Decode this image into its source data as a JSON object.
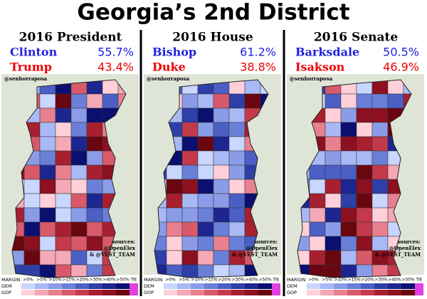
{
  "header": {
    "title": "Georgia’s 2nd District"
  },
  "panels": [
    {
      "heading": "2016 President",
      "candidates": [
        {
          "name": "Clinton",
          "pct": "55.7%",
          "party": "dem"
        },
        {
          "name": "Trump",
          "pct": "43.4%",
          "party": "gop"
        }
      ],
      "credit": "@senhorraposa",
      "sources": [
        "sources:",
        "@OpenElex",
        "& @VEST_TEAM"
      ]
    },
    {
      "heading": "2016 House",
      "candidates": [
        {
          "name": "Bishop",
          "pct": "61.2%",
          "party": "dem"
        },
        {
          "name": "Duke",
          "pct": "38.8%",
          "party": "gop"
        }
      ],
      "credit": "@senhorraposa",
      "sources": [
        "sources:",
        "@OpenElex",
        "& @VEST_TEAM"
      ]
    },
    {
      "heading": "2016 Senate",
      "candidates": [
        {
          "name": "Barksdale",
          "pct": "50.5%",
          "party": "dem"
        },
        {
          "name": "Isakson",
          "pct": "46.9%",
          "party": "gop"
        }
      ],
      "credit": "@senhorraposa",
      "sources": [
        "sources:",
        "@OpenElex",
        "& @VEST_TEAM"
      ]
    }
  ],
  "legend": {
    "margin": "MARGIN",
    "dem": "DEM",
    "gop": "GOP",
    "tie": "TIE",
    "levels": [
      ">0%",
      ">5%",
      ">10%",
      ">15%",
      ">20%",
      ">30%",
      ">40%",
      ">50%"
    ]
  }
}
